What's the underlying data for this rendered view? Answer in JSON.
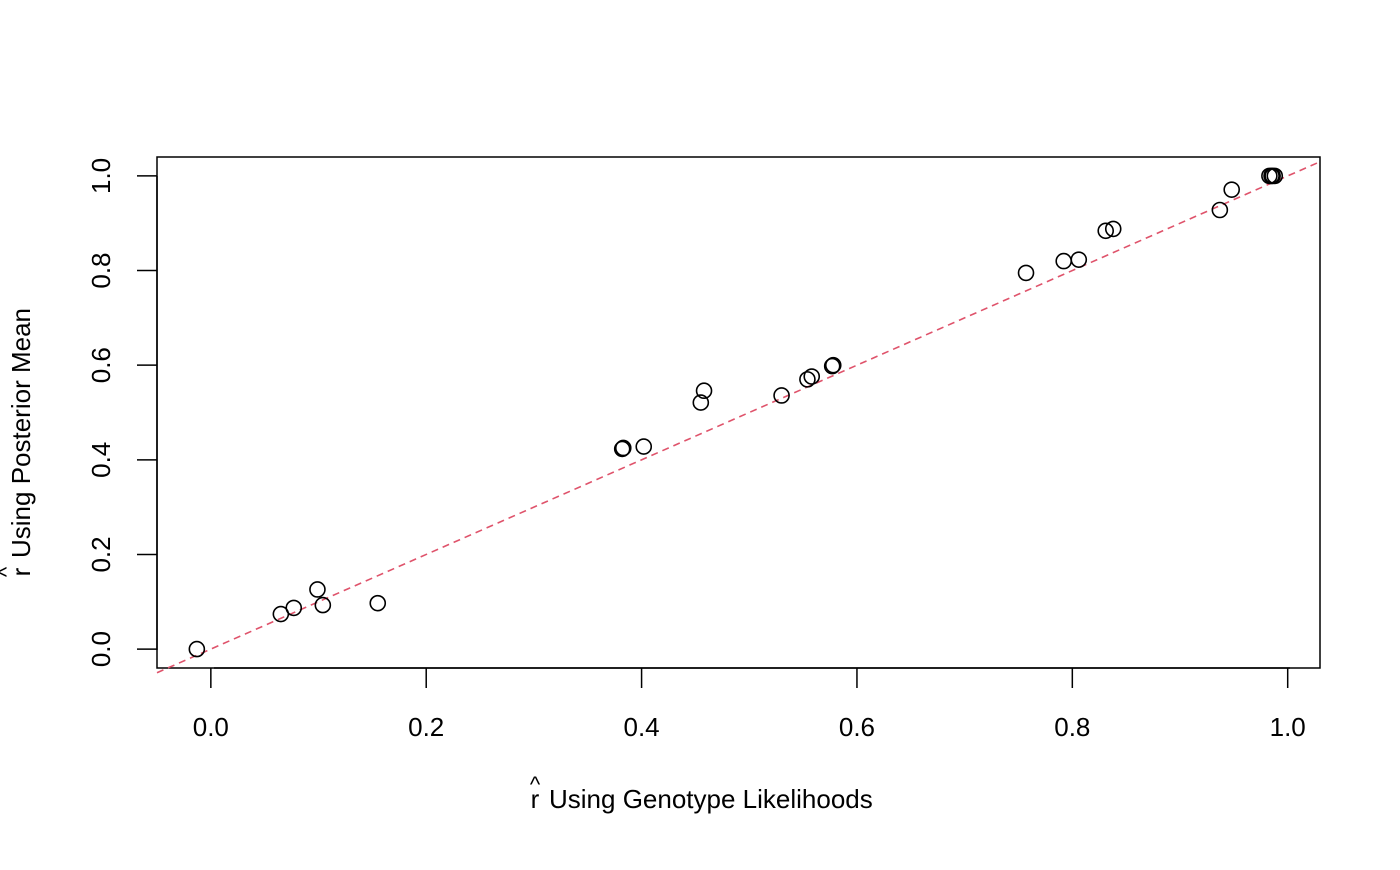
{
  "chart_data": {
    "type": "scatter",
    "title": "",
    "xlabel": "Using Genotype Likelihoods",
    "ylabel": "Using Posterior Mean",
    "label_symbol": "r",
    "label_accent": "^",
    "xlim": [
      -0.05,
      1.03
    ],
    "ylim": [
      -0.04,
      1.04
    ],
    "x_ticks": [
      0.0,
      0.2,
      0.4,
      0.6,
      0.8,
      1.0
    ],
    "x_tick_labels": [
      "0.0",
      "0.2",
      "0.4",
      "0.6",
      "0.8",
      "1.0"
    ],
    "y_ticks": [
      0.0,
      0.2,
      0.4,
      0.6,
      0.8,
      1.0
    ],
    "y_tick_labels": [
      "0.0",
      "0.2",
      "0.4",
      "0.6",
      "0.8",
      "1.0"
    ],
    "grid": false,
    "legend": "none",
    "reference_line": {
      "intercept": 0,
      "slope": 1,
      "style": "dashed",
      "color": "#DF536B"
    },
    "marker": "open-circle",
    "marker_color": "#000000",
    "points": [
      {
        "x": -0.013,
        "y": 0.0
      },
      {
        "x": 0.065,
        "y": 0.074
      },
      {
        "x": 0.077,
        "y": 0.087
      },
      {
        "x": 0.099,
        "y": 0.126
      },
      {
        "x": 0.104,
        "y": 0.093
      },
      {
        "x": 0.155,
        "y": 0.097
      },
      {
        "x": 0.382,
        "y": 0.423
      },
      {
        "x": 0.383,
        "y": 0.425
      },
      {
        "x": 0.402,
        "y": 0.428
      },
      {
        "x": 0.455,
        "y": 0.521
      },
      {
        "x": 0.458,
        "y": 0.546
      },
      {
        "x": 0.53,
        "y": 0.536
      },
      {
        "x": 0.554,
        "y": 0.57
      },
      {
        "x": 0.558,
        "y": 0.576
      },
      {
        "x": 0.577,
        "y": 0.598
      },
      {
        "x": 0.578,
        "y": 0.6
      },
      {
        "x": 0.757,
        "y": 0.795
      },
      {
        "x": 0.792,
        "y": 0.82
      },
      {
        "x": 0.806,
        "y": 0.823
      },
      {
        "x": 0.831,
        "y": 0.884
      },
      {
        "x": 0.838,
        "y": 0.888
      },
      {
        "x": 0.937,
        "y": 0.928
      },
      {
        "x": 0.948,
        "y": 0.971
      },
      {
        "x": 0.983,
        "y": 1.0
      },
      {
        "x": 0.985,
        "y": 1.0
      },
      {
        "x": 0.986,
        "y": 1.0
      },
      {
        "x": 0.988,
        "y": 1.0
      }
    ]
  }
}
